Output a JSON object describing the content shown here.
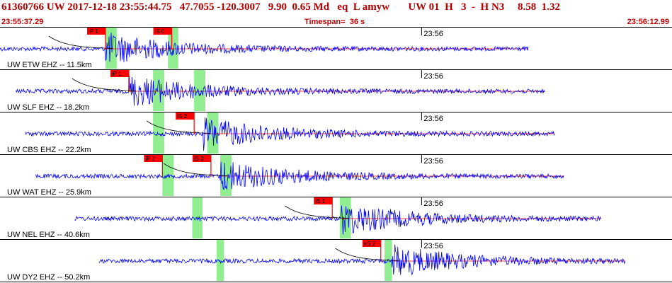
{
  "header": {
    "event_id": "61360766",
    "network": "UW",
    "datetime": "2017-12-18 23:55:44.75",
    "latitude": "47.7055",
    "longitude": "-120.3007",
    "depth": "9.90",
    "magnitude": "0.65 Md",
    "event_type": "eq",
    "review": "L",
    "author": "amyw",
    "network2": "UW",
    "code": "01",
    "h_label": "H",
    "h_count": "3",
    "dash": "-",
    "hn": "H N3",
    "v1": "8.58",
    "v2": "1.32",
    "start_time": "23:55:37.29",
    "timespan_label": "Timespan=",
    "timespan_value": "36 s",
    "end_time": "23:56:12.99"
  },
  "colors": {
    "header_text": "#b00000",
    "trace": "#0000ff",
    "pick_marker": "#ff0000",
    "arrival_window": "#90ee90",
    "travel_curve": "#000000",
    "baseline": "#ff0000"
  },
  "traces": [
    {
      "label": "UW ETW EHZ -- 11.5km",
      "minute_label": "23:56",
      "picks": [
        {
          "label": "iP 1",
          "t": 5.65
        },
        {
          "label": "iS 0",
          "t": 9.2
        }
      ],
      "green_windows": [
        {
          "start": 5.65,
          "end": 6.25
        },
        {
          "start": 9.0,
          "end": 9.55
        }
      ],
      "trace_span": [
        0.0,
        28.3
      ],
      "amp_onset": 5.65
    },
    {
      "label": "UW SLF EHZ -- 18.2km",
      "minute_label": "23:56",
      "picks": [
        {
          "label": "iP 1",
          "t": 6.9
        }
      ],
      "green_windows": [
        {
          "start": 8.2,
          "end": 8.8
        },
        {
          "start": 10.4,
          "end": 11.0
        }
      ],
      "trace_span": [
        0.85,
        29.2
      ],
      "amp_onset": 6.9
    },
    {
      "label": "UW CBS EHZ -- 22.2km",
      "minute_label": "23:56",
      "picks": [
        {
          "label": "iS 2",
          "t": 10.4
        }
      ],
      "green_windows": [
        {
          "start": 8.2,
          "end": 8.8
        },
        {
          "start": 11.1,
          "end": 11.7
        }
      ],
      "trace_span": [
        1.35,
        29.7
      ],
      "amp_onset": 10.9
    },
    {
      "label": "UW WAT EHZ -- 25.9km",
      "minute_label": "23:56",
      "picks": [
        {
          "label": "iP 2",
          "t": 8.7
        },
        {
          "label": "iS 2",
          "t": 11.3
        }
      ],
      "green_windows": [
        {
          "start": 8.7,
          "end": 9.3
        },
        {
          "start": 11.8,
          "end": 12.4
        }
      ],
      "trace_span": [
        1.9,
        30.2
      ],
      "amp_onset": 11.8
    },
    {
      "label": "UW NEL EHZ -- 40.6km",
      "minute_label": "23:56",
      "picks": [
        {
          "label": "iS 1",
          "t": 17.8
        }
      ],
      "green_windows": [
        {
          "start": 10.3,
          "end": 10.85
        },
        {
          "start": 18.2,
          "end": 18.8
        }
      ],
      "trace_span": [
        4.0,
        32.2
      ],
      "amp_onset": 18.3
    },
    {
      "label": "UW DY2 EHZ -- 50.2km",
      "minute_label": "23:56",
      "picks": [
        {
          "label": "eS 2",
          "t": 20.4
        }
      ],
      "green_windows": [
        {
          "start": 11.6,
          "end": 12.0
        },
        {
          "start": 20.6,
          "end": 21.0
        }
      ],
      "trace_span": [
        5.3,
        33.5
      ],
      "amp_onset": 21.0
    }
  ]
}
